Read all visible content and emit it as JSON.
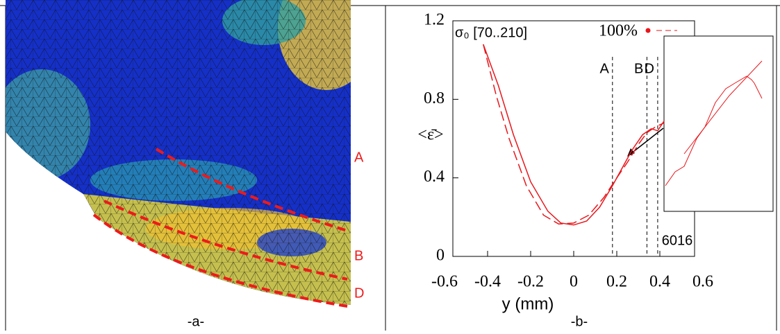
{
  "panel_a": {
    "labels": [
      "A",
      "B",
      "D"
    ],
    "caption": "-a-"
  },
  "panel_b_caption": "-b-",
  "chart_data": {
    "type": "line",
    "legend_title": "σ₀ [70..210]",
    "xlabel": "y (mm)",
    "ylabel": "<ε̄>",
    "xlim": [
      -0.6,
      0.6
    ],
    "xticks": [
      -0.6,
      -0.4,
      -0.2,
      0,
      0.2,
      0.4,
      0.6
    ],
    "ylim": [
      0,
      1.2
    ],
    "yticks": [
      0,
      0.4,
      0.8,
      1.2
    ],
    "series": [
      {
        "name": "100%",
        "color": "#e8161b",
        "x": [
          -0.42,
          -0.35,
          -0.28,
          -0.2,
          -0.12,
          -0.06,
          0,
          0.06,
          0.12,
          0.18,
          0.22,
          0.27,
          0.32,
          0.36,
          0.39,
          0.42
        ],
        "values": [
          1.08,
          0.87,
          0.62,
          0.38,
          0.23,
          0.17,
          0.16,
          0.18,
          0.25,
          0.36,
          0.44,
          0.54,
          0.62,
          0.65,
          0.64,
          0.69
        ]
      },
      {
        "color": "#e8161b",
        "dashed": true,
        "x": [
          -0.42,
          -0.36,
          -0.3,
          -0.22,
          -0.14,
          -0.07,
          0,
          0.07,
          0.14,
          0.2,
          0.25,
          0.3,
          0.34,
          0.38,
          0.42
        ],
        "values": [
          1.08,
          0.82,
          0.6,
          0.36,
          0.21,
          0.165,
          0.17,
          0.21,
          0.3,
          0.4,
          0.48,
          0.57,
          0.63,
          0.66,
          0.68
        ]
      }
    ],
    "vlines": [
      {
        "x": 0.18,
        "label": "A"
      },
      {
        "x": 0.34,
        "label": "B"
      },
      {
        "x": 0.39,
        "label": "D"
      }
    ],
    "annotation": "6016"
  }
}
